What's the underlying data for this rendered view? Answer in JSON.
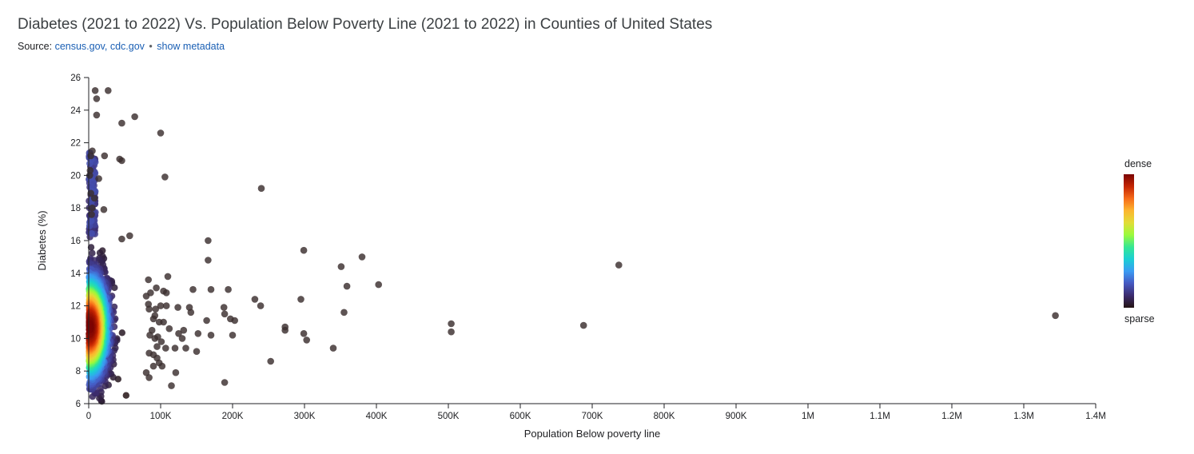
{
  "header": {
    "title": "Diabetes (2021 to 2022) Vs. Population Below Poverty Line (2021 to 2022) in Counties of United States",
    "source_prefix": "Source:",
    "source_links": "census.gov, cdc.gov",
    "separator": "•",
    "metadata_link": "show metadata"
  },
  "colors": {
    "dense": "#7a0403",
    "sparse": "#231313",
    "outlier": "#3a2e2e",
    "link": "#1a5fb4"
  },
  "legend": {
    "dense_label": "dense",
    "sparse_label": "sparse",
    "gradient": [
      "#7a0403",
      "#c42503",
      "#f66b19",
      "#fcb62f",
      "#e1dd37",
      "#9bfa3c",
      "#35e793",
      "#1bcfd4",
      "#3b9bf3",
      "#4658c1",
      "#3c2b6e",
      "#231313"
    ]
  },
  "chart_data": {
    "type": "scatter",
    "title": "Diabetes (2021 to 2022) Vs. Population Below Poverty Line (2021 to 2022) in Counties of United States",
    "xlabel": "Population Below poverty line",
    "ylabel": "Diabetes (%)",
    "xlim": [
      0,
      1400000
    ],
    "ylim": [
      6,
      26
    ],
    "x_ticks": [
      0,
      100000,
      200000,
      300000,
      400000,
      500000,
      600000,
      700000,
      800000,
      900000,
      1000000,
      1100000,
      1200000,
      1300000,
      1400000
    ],
    "x_tick_labels": [
      "0",
      "100K",
      "200K",
      "300K",
      "400K",
      "500K",
      "600K",
      "700K",
      "800K",
      "900K",
      "1M",
      "1.1M",
      "1.2M",
      "1.3M",
      "1.4M"
    ],
    "y_ticks": [
      6,
      8,
      10,
      12,
      14,
      16,
      18,
      20,
      22,
      24,
      26
    ],
    "y_tick_labels": [
      "6",
      "8",
      "10",
      "12",
      "14",
      "16",
      "18",
      "20",
      "22",
      "24",
      "26"
    ],
    "grid": false,
    "legend_placement": "right",
    "color_encoding": "point density",
    "points": [
      [
        9000,
        25.2
      ],
      [
        27000,
        25.2
      ],
      [
        11000,
        24.7
      ],
      [
        11000,
        23.7
      ],
      [
        64000,
        23.6
      ],
      [
        46000,
        23.2
      ],
      [
        100000,
        22.6
      ],
      [
        5000,
        21.5
      ],
      [
        3000,
        21.2
      ],
      [
        22000,
        21.2
      ],
      [
        43000,
        21.0
      ],
      [
        46000,
        20.9
      ],
      [
        2000,
        20.3
      ],
      [
        1500,
        20.0
      ],
      [
        106000,
        19.9
      ],
      [
        14000,
        19.8
      ],
      [
        240000,
        19.2
      ],
      [
        5000,
        18.0
      ],
      [
        21000,
        17.9
      ],
      [
        3000,
        18.9
      ],
      [
        8000,
        18.6
      ],
      [
        4000,
        17.6
      ],
      [
        57000,
        16.3
      ],
      [
        166000,
        16.0
      ],
      [
        46000,
        16.1
      ],
      [
        299000,
        15.4
      ],
      [
        380000,
        15.0
      ],
      [
        166000,
        14.8
      ],
      [
        351000,
        14.4
      ],
      [
        737000,
        14.5
      ],
      [
        403000,
        13.3
      ],
      [
        359000,
        13.2
      ],
      [
        83000,
        13.6
      ],
      [
        110000,
        13.8
      ],
      [
        94000,
        13.1
      ],
      [
        104000,
        12.9
      ],
      [
        108000,
        12.8
      ],
      [
        145000,
        13.0
      ],
      [
        170000,
        13.0
      ],
      [
        194000,
        13.0
      ],
      [
        231000,
        12.4
      ],
      [
        295000,
        12.4
      ],
      [
        239000,
        12.0
      ],
      [
        100000,
        12.0
      ],
      [
        108000,
        12.0
      ],
      [
        124000,
        11.9
      ],
      [
        140000,
        11.9
      ],
      [
        142000,
        11.6
      ],
      [
        188000,
        11.9
      ],
      [
        189000,
        11.5
      ],
      [
        355000,
        11.6
      ],
      [
        197000,
        11.2
      ],
      [
        203000,
        11.1
      ],
      [
        92000,
        11.4
      ],
      [
        98000,
        11.0
      ],
      [
        104000,
        11.0
      ],
      [
        164000,
        11.1
      ],
      [
        112000,
        10.6
      ],
      [
        132000,
        10.5
      ],
      [
        152000,
        10.3
      ],
      [
        170000,
        10.2
      ],
      [
        125000,
        10.3
      ],
      [
        130000,
        10.0
      ],
      [
        150000,
        9.2
      ],
      [
        101000,
        9.8
      ],
      [
        107000,
        9.4
      ],
      [
        120000,
        9.4
      ],
      [
        135000,
        9.4
      ],
      [
        200000,
        10.2
      ],
      [
        273000,
        10.7
      ],
      [
        273000,
        10.5
      ],
      [
        299000,
        10.3
      ],
      [
        303000,
        9.9
      ],
      [
        340000,
        9.4
      ],
      [
        253000,
        8.6
      ],
      [
        121000,
        7.9
      ],
      [
        115000,
        7.1
      ],
      [
        189000,
        7.3
      ],
      [
        504000,
        10.9
      ],
      [
        504000,
        10.4
      ],
      [
        688000,
        10.8
      ],
      [
        1344000,
        11.4
      ],
      [
        80000,
        7.9
      ],
      [
        84000,
        7.6
      ],
      [
        90000,
        8.3
      ],
      [
        95000,
        8.8
      ],
      [
        98000,
        8.5
      ],
      [
        102000,
        8.3
      ],
      [
        84000,
        9.1
      ],
      [
        90000,
        9.0
      ],
      [
        95000,
        9.5
      ],
      [
        92000,
        10.0
      ],
      [
        85000,
        10.2
      ],
      [
        88000,
        10.5
      ],
      [
        96000,
        10.1
      ],
      [
        83000,
        12.1
      ],
      [
        86000,
        12.8
      ],
      [
        80000,
        12.6
      ],
      [
        84000,
        11.8
      ],
      [
        90000,
        11.2
      ],
      [
        93000,
        11.8
      ]
    ]
  }
}
